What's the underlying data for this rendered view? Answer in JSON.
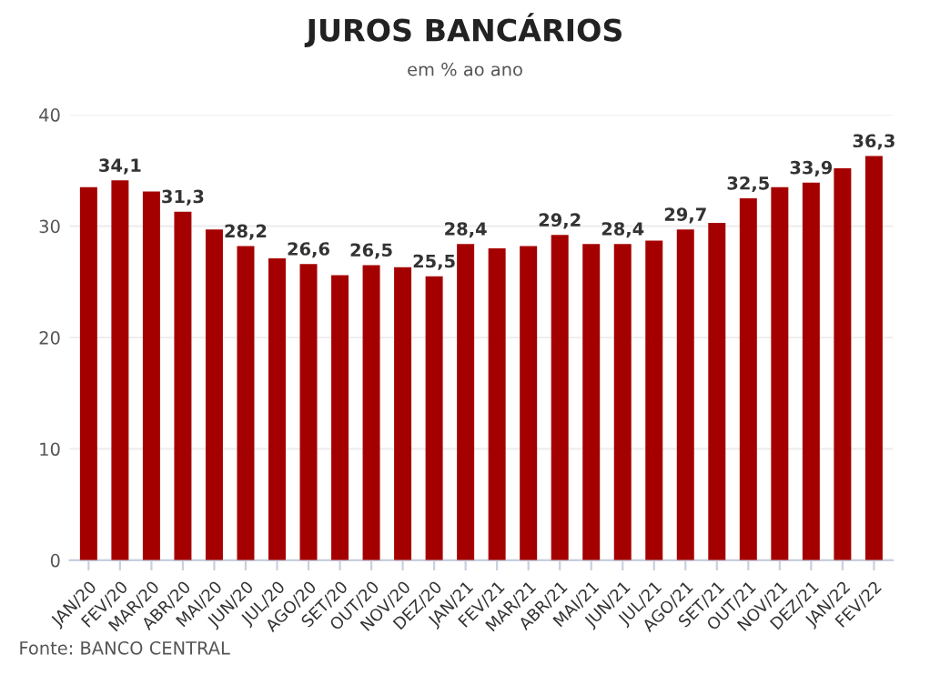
{
  "chart_data": {
    "type": "bar",
    "title": "JUROS BANCÁRIOS",
    "subtitle": "em % ao ano",
    "categories": [
      "JAN/20",
      "FEV/20",
      "MAR/20",
      "ABR/20",
      "MAI/20",
      "JUN/20",
      "JUL/20",
      "AGO/20",
      "SET/20",
      "OUT/20",
      "NOV/20",
      "DEZ/20",
      "JAN/21",
      "FEV/21",
      "MAR/21",
      "ABR/21",
      "MAI/21",
      "JUN/21",
      "JUL/21",
      "AGO/21",
      "SET/21",
      "OUT/21",
      "NOV/21",
      "DEZ/21",
      "JAN/22",
      "FEV/22"
    ],
    "values": [
      33.5,
      34.1,
      33.1,
      31.3,
      29.7,
      28.2,
      27.1,
      26.6,
      25.6,
      26.5,
      26.3,
      25.5,
      28.4,
      28.0,
      28.2,
      29.2,
      28.4,
      28.4,
      28.7,
      29.7,
      30.3,
      32.5,
      33.5,
      33.9,
      35.2,
      36.3
    ],
    "value_labels": [
      null,
      "34,1",
      null,
      "31,3",
      null,
      "28,2",
      null,
      "26,6",
      null,
      "26,5",
      null,
      "25,5",
      "28,4",
      null,
      null,
      "29,2",
      null,
      "28,4",
      null,
      "29,7",
      null,
      "32,5",
      null,
      "33,9",
      null,
      "36,3"
    ],
    "color": "#a50000",
    "ylim": [
      0,
      40
    ],
    "yticks": [
      0,
      10,
      20,
      30,
      40
    ],
    "grid": "y",
    "annotations": [
      "Fonte: BANCO CENTRAL"
    ]
  }
}
